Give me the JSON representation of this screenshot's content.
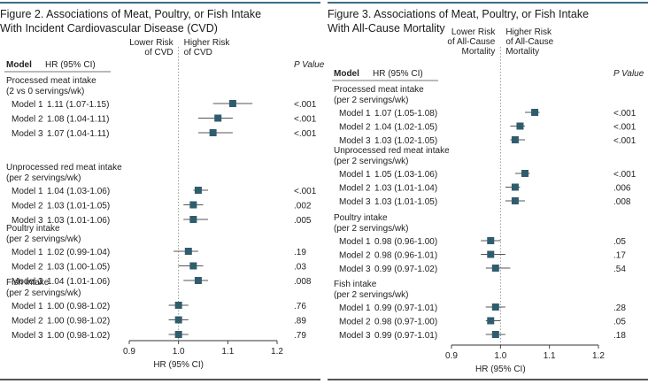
{
  "chart_data": [
    {
      "type": "forest",
      "title": "Figure 2. Associations of Meat, Poultry, or Fish Intake\nWith Incident Cardiovascular Disease (CVD)",
      "col_model": "Model",
      "col_hr": "HR (95% CI)",
      "col_p": "P Value",
      "direction_left": "Lower Risk\nof CVD",
      "direction_right": "Higher Risk\nof CVD",
      "xlabel": "HR (95% CI)",
      "xlim": [
        0.9,
        1.2
      ],
      "xticks": [
        0.9,
        1.0,
        1.1,
        1.2
      ],
      "reference": 1.0,
      "groups": [
        {
          "label": "Processed meat intake\n(2 vs 0 servings/wk)",
          "rows": [
            {
              "model": "Model 1",
              "hr_text": "1.11 (1.07-1.15)",
              "hr": 1.11,
              "lo": 1.07,
              "hi": 1.15,
              "p": "<.001"
            },
            {
              "model": "Model 2",
              "hr_text": "1.08 (1.04-1.11)",
              "hr": 1.08,
              "lo": 1.04,
              "hi": 1.11,
              "p": "<.001"
            },
            {
              "model": "Model 3",
              "hr_text": "1.07 (1.04-1.11)",
              "hr": 1.07,
              "lo": 1.04,
              "hi": 1.11,
              "p": "<.001"
            }
          ]
        },
        {
          "label": "Unprocessed red meat intake\n(per 2 servings/wk)",
          "rows": [
            {
              "model": "Model 1",
              "hr_text": "1.04 (1.03-1.06)",
              "hr": 1.04,
              "lo": 1.03,
              "hi": 1.06,
              "p": "<.001"
            },
            {
              "model": "Model 2",
              "hr_text": "1.03 (1.01-1.05)",
              "hr": 1.03,
              "lo": 1.01,
              "hi": 1.05,
              "p": ".002"
            },
            {
              "model": "Model 3",
              "hr_text": "1.03 (1.01-1.06)",
              "hr": 1.03,
              "lo": 1.01,
              "hi": 1.06,
              "p": ".005"
            }
          ]
        },
        {
          "label": "Poultry intake\n(per 2 servings/wk)",
          "rows": [
            {
              "model": "Model 1",
              "hr_text": "1.02 (0.99-1.04)",
              "hr": 1.02,
              "lo": 0.99,
              "hi": 1.04,
              "p": ".19"
            },
            {
              "model": "Model 2",
              "hr_text": "1.03 (1.00-1.05)",
              "hr": 1.03,
              "lo": 1.0,
              "hi": 1.05,
              "p": ".03"
            },
            {
              "model": "Model 3",
              "hr_text": "1.04 (1.01-1.06)",
              "hr": 1.04,
              "lo": 1.01,
              "hi": 1.06,
              "p": ".008"
            }
          ]
        },
        {
          "label": "Fish intake\n(per 2 servings/wk)",
          "rows": [
            {
              "model": "Model 1",
              "hr_text": "1.00 (0.98-1.02)",
              "hr": 1.0,
              "lo": 0.98,
              "hi": 1.02,
              "p": ".76"
            },
            {
              "model": "Model 2",
              "hr_text": "1.00 (0.98-1.02)",
              "hr": 1.0,
              "lo": 0.98,
              "hi": 1.02,
              "p": ".89"
            },
            {
              "model": "Model 3",
              "hr_text": "1.00 (0.98-1.02)",
              "hr": 1.0,
              "lo": 0.98,
              "hi": 1.02,
              "p": ".79"
            }
          ]
        }
      ]
    },
    {
      "type": "forest",
      "title": "Figure 3. Associations of Meat, Poultry, or Fish Intake\nWith All-Cause Mortality",
      "col_model": "Model",
      "col_hr": "HR (95% CI)",
      "col_p": "P Value",
      "direction_left": "Lower Risk\nof All-Cause\nMortality",
      "direction_right": "Higher Risk\nof All-Cause\nMortality",
      "xlabel": "HR (95% CI)",
      "xlim": [
        0.9,
        1.2
      ],
      "xticks": [
        0.9,
        1.0,
        1.1,
        1.2
      ],
      "reference": 1.0,
      "groups": [
        {
          "label": "Processed meat intake\n(per 2 servings/wk)",
          "rows": [
            {
              "model": "Model 1",
              "hr_text": "1.07 (1.05-1.08)",
              "hr": 1.07,
              "lo": 1.05,
              "hi": 1.08,
              "p": "<.001"
            },
            {
              "model": "Model 2",
              "hr_text": "1.04 (1.02-1.05)",
              "hr": 1.04,
              "lo": 1.02,
              "hi": 1.05,
              "p": "<.001"
            },
            {
              "model": "Model 3",
              "hr_text": "1.03 (1.02-1.05)",
              "hr": 1.03,
              "lo": 1.02,
              "hi": 1.05,
              "p": "<.001"
            }
          ]
        },
        {
          "label": "Unprocessed red meat intake\n(per 2 servings/wk)",
          "rows": [
            {
              "model": "Model 1",
              "hr_text": "1.05 (1.03-1.06)",
              "hr": 1.05,
              "lo": 1.03,
              "hi": 1.06,
              "p": "<.001"
            },
            {
              "model": "Model 2",
              "hr_text": "1.03 (1.01-1.04)",
              "hr": 1.03,
              "lo": 1.01,
              "hi": 1.04,
              "p": ".006"
            },
            {
              "model": "Model 3",
              "hr_text": "1.03 (1.01-1.05)",
              "hr": 1.03,
              "lo": 1.01,
              "hi": 1.05,
              "p": ".008"
            }
          ]
        },
        {
          "label": "Poultry intake\n(per 2 servings/wk)",
          "rows": [
            {
              "model": "Model 1",
              "hr_text": "0.98 (0.96-1.00)",
              "hr": 0.98,
              "lo": 0.96,
              "hi": 1.0,
              "p": ".05"
            },
            {
              "model": "Model 2",
              "hr_text": "0.98 (0.96-1.01)",
              "hr": 0.98,
              "lo": 0.96,
              "hi": 1.01,
              "p": ".17"
            },
            {
              "model": "Model 3",
              "hr_text": "0.99 (0.97-1.02)",
              "hr": 0.99,
              "lo": 0.97,
              "hi": 1.02,
              "p": ".54"
            }
          ]
        },
        {
          "label": "Fish intake\n(per 2 servings/wk)",
          "rows": [
            {
              "model": "Model 1",
              "hr_text": "0.99 (0.97-1.01)",
              "hr": 0.99,
              "lo": 0.97,
              "hi": 1.01,
              "p": ".28"
            },
            {
              "model": "Model 2",
              "hr_text": "0.98 (0.97-1.00)",
              "hr": 0.98,
              "lo": 0.97,
              "hi": 1.0,
              "p": ".05"
            },
            {
              "model": "Model 3",
              "hr_text": "0.99 (0.97-1.01)",
              "hr": 0.99,
              "lo": 0.97,
              "hi": 1.01,
              "p": ".18"
            }
          ]
        }
      ]
    }
  ],
  "colors": {
    "marker": "#2f5d6e",
    "ci_line": "#555555",
    "title_bar": "#3a6e86",
    "reference_line": "#888888"
  }
}
